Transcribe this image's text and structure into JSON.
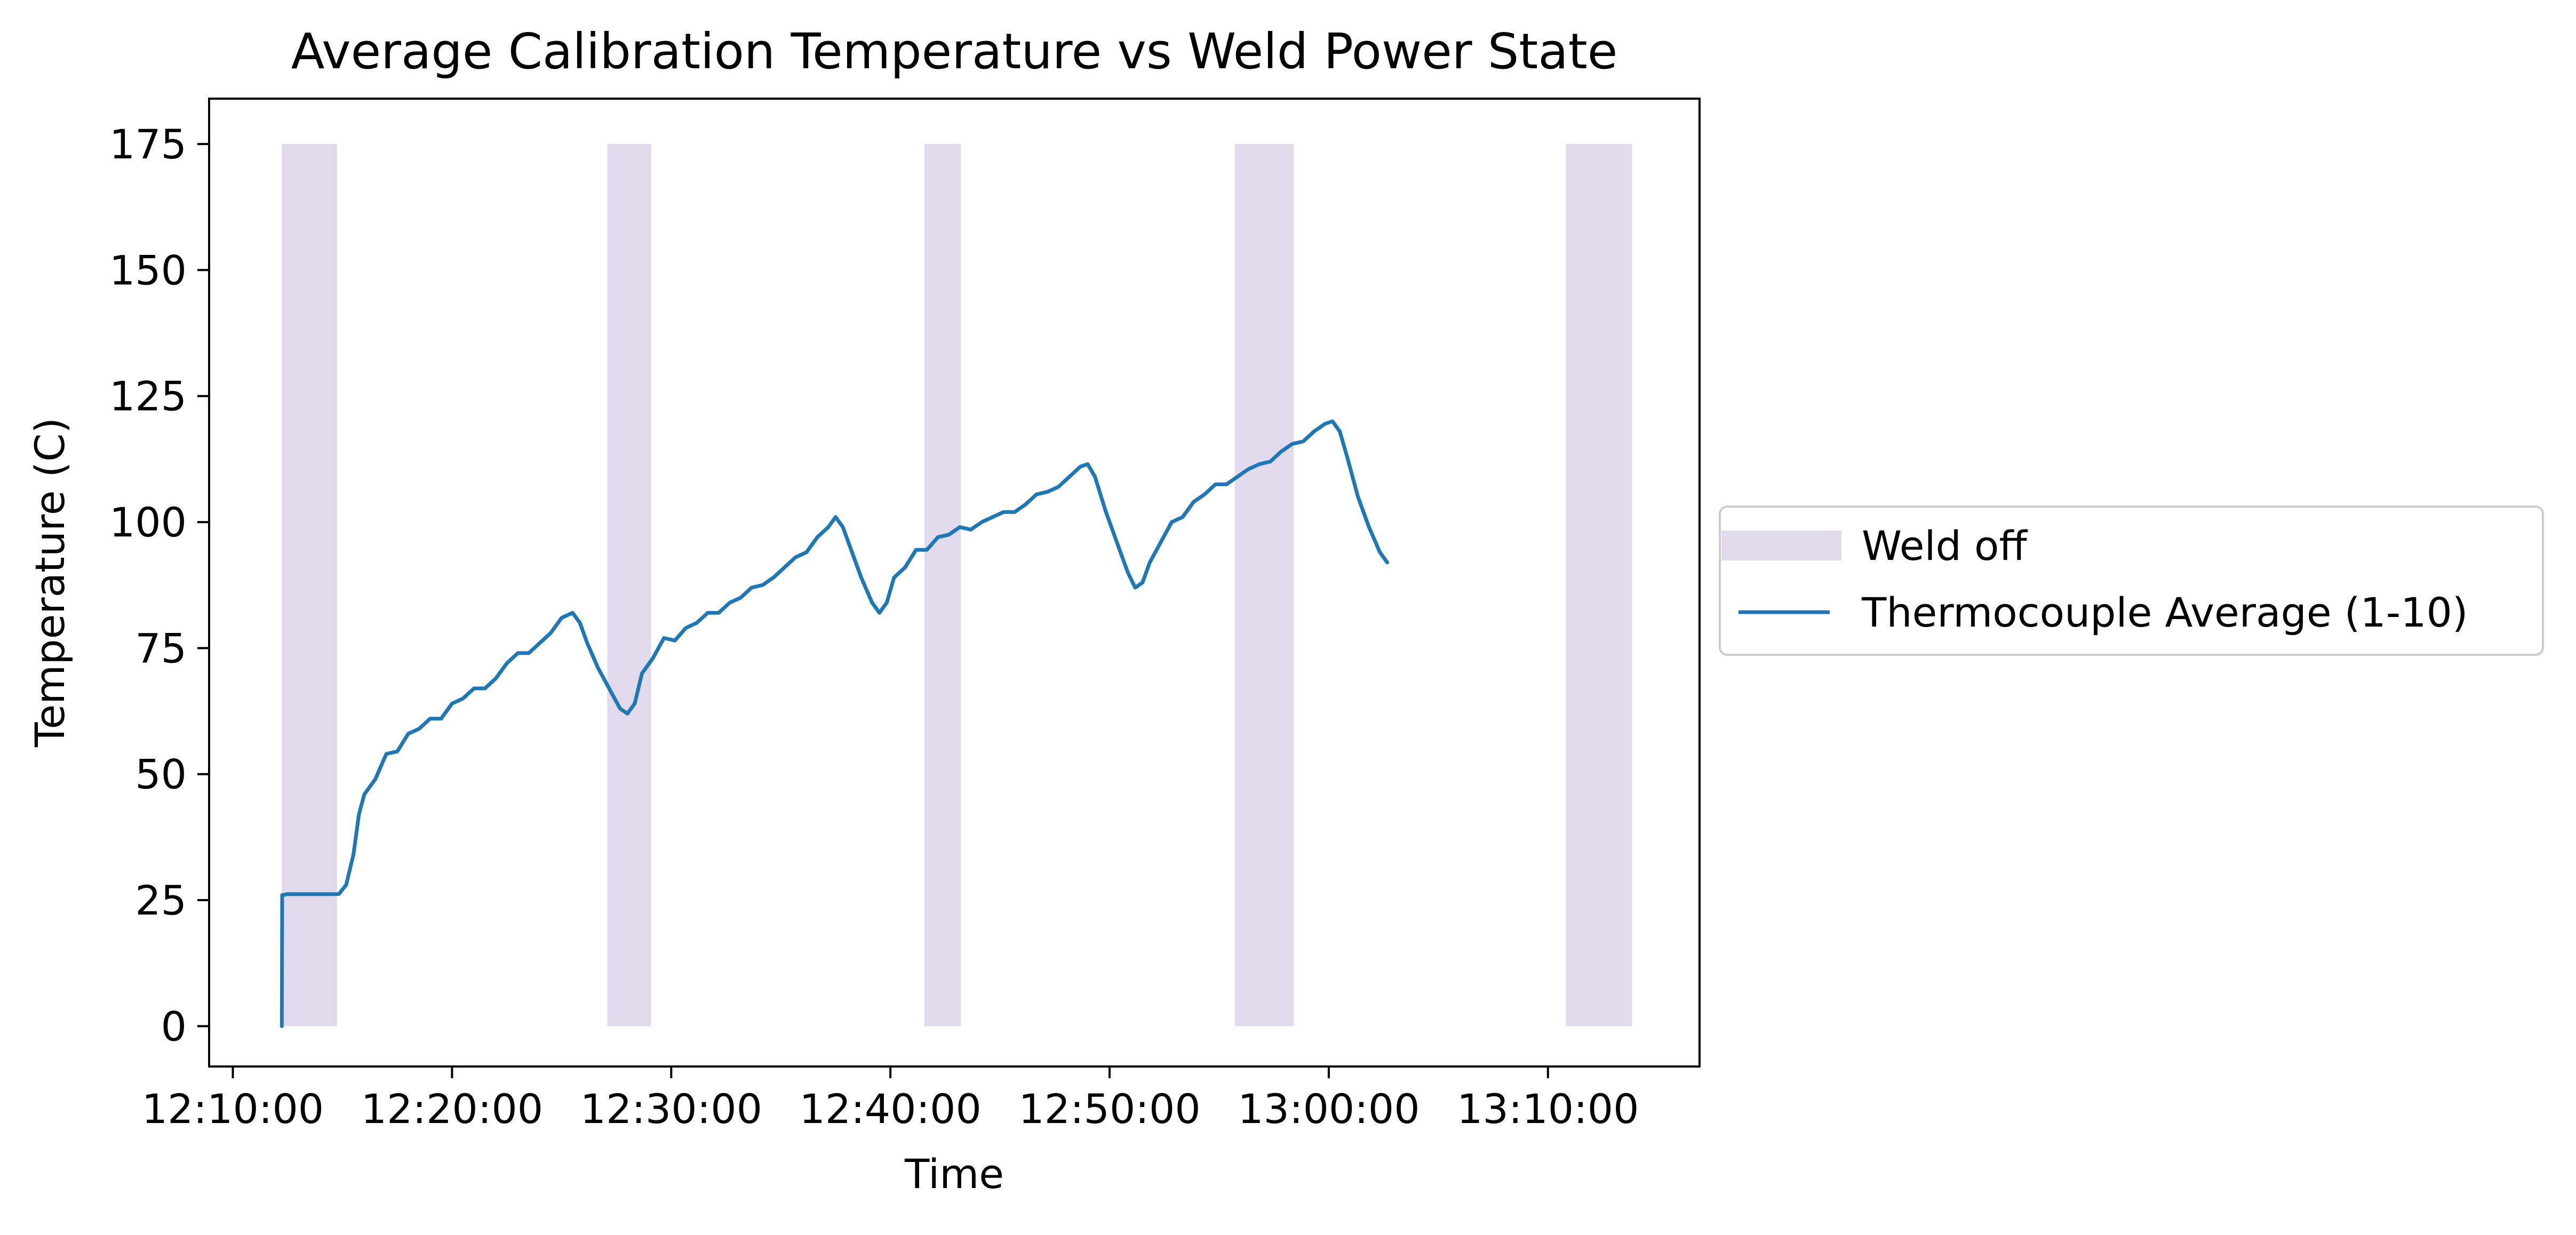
{
  "chart_data": {
    "type": "line",
    "title": "Average Calibration Temperature vs Weld Power State",
    "xlabel": "Time",
    "ylabel": "Temperature (C)",
    "x_axis": {
      "ticks": [
        "12:10:00",
        "12:20:00",
        "12:30:00",
        "12:40:00",
        "12:50:00",
        "13:00:00",
        "13:10:00"
      ],
      "range": [
        "12:08:55",
        "13:16:55"
      ]
    },
    "y_axis": {
      "ticks": [
        0,
        25,
        50,
        75,
        100,
        125,
        150,
        175
      ],
      "range": [
        -8,
        184
      ]
    },
    "grid": false,
    "legend": {
      "position": "outside right, center",
      "entries": [
        "Weld off",
        "Thermocouple Average (1-10)"
      ]
    },
    "shaded_regions": {
      "name": "Weld off",
      "color": "#e1d9ec",
      "y_range": [
        0,
        175
      ],
      "intervals": [
        [
          "12:12:14",
          "12:14:45"
        ],
        [
          "12:27:05",
          "12:29:05"
        ],
        [
          "12:41:33",
          "12:43:13"
        ],
        [
          "12:55:43",
          "12:58:24"
        ],
        [
          "13:10:49",
          "13:13:50"
        ]
      ]
    },
    "series": [
      {
        "name": "Thermocouple Average (1-10)",
        "color": "#1f77b4",
        "points": [
          [
            "12:12:14",
            0
          ],
          [
            "12:12:15",
            26
          ],
          [
            "12:12:30",
            26.2
          ],
          [
            "12:14:50",
            26.2
          ],
          [
            "12:15:10",
            28
          ],
          [
            "12:15:30",
            34
          ],
          [
            "12:15:45",
            42
          ],
          [
            "12:16:00",
            46
          ],
          [
            "12:16:30",
            49
          ],
          [
            "12:17:00",
            54
          ],
          [
            "12:17:30",
            54.5
          ],
          [
            "12:18:00",
            58
          ],
          [
            "12:18:30",
            59
          ],
          [
            "12:19:00",
            61
          ],
          [
            "12:19:30",
            61
          ],
          [
            "12:20:00",
            64
          ],
          [
            "12:20:30",
            65
          ],
          [
            "12:21:00",
            67
          ],
          [
            "12:21:30",
            67
          ],
          [
            "12:22:00",
            69
          ],
          [
            "12:22:30",
            72
          ],
          [
            "12:23:00",
            74
          ],
          [
            "12:23:30",
            74
          ],
          [
            "12:24:00",
            76
          ],
          [
            "12:24:30",
            78
          ],
          [
            "12:25:00",
            81
          ],
          [
            "12:25:30",
            82
          ],
          [
            "12:25:50",
            80
          ],
          [
            "12:26:10",
            76
          ],
          [
            "12:26:40",
            71
          ],
          [
            "12:27:10",
            67
          ],
          [
            "12:27:40",
            63
          ],
          [
            "12:28:00",
            62
          ],
          [
            "12:28:20",
            64
          ],
          [
            "12:28:40",
            70
          ],
          [
            "12:29:10",
            73
          ],
          [
            "12:29:40",
            77
          ],
          [
            "12:30:10",
            76.5
          ],
          [
            "12:30:40",
            79
          ],
          [
            "12:31:10",
            80
          ],
          [
            "12:31:40",
            82
          ],
          [
            "12:32:10",
            82
          ],
          [
            "12:32:40",
            84
          ],
          [
            "12:33:10",
            85
          ],
          [
            "12:33:40",
            87
          ],
          [
            "12:34:10",
            87.5
          ],
          [
            "12:34:40",
            89
          ],
          [
            "12:35:10",
            91
          ],
          [
            "12:35:40",
            93
          ],
          [
            "12:36:10",
            94
          ],
          [
            "12:36:40",
            97
          ],
          [
            "12:37:10",
            99
          ],
          [
            "12:37:30",
            101
          ],
          [
            "12:37:50",
            99
          ],
          [
            "12:38:10",
            95
          ],
          [
            "12:38:40",
            89
          ],
          [
            "12:39:10",
            84
          ],
          [
            "12:39:30",
            82
          ],
          [
            "12:39:50",
            84
          ],
          [
            "12:40:10",
            89
          ],
          [
            "12:40:40",
            91
          ],
          [
            "12:41:10",
            94.5
          ],
          [
            "12:41:40",
            94.5
          ],
          [
            "12:42:10",
            97
          ],
          [
            "12:42:40",
            97.5
          ],
          [
            "12:43:10",
            99
          ],
          [
            "12:43:40",
            98.5
          ],
          [
            "12:44:10",
            100
          ],
          [
            "12:44:40",
            101
          ],
          [
            "12:45:10",
            102
          ],
          [
            "12:45:40",
            102
          ],
          [
            "12:46:10",
            103.5
          ],
          [
            "12:46:40",
            105.5
          ],
          [
            "12:47:10",
            106
          ],
          [
            "12:47:40",
            107
          ],
          [
            "12:48:10",
            109
          ],
          [
            "12:48:40",
            111
          ],
          [
            "12:49:00",
            111.5
          ],
          [
            "12:49:20",
            109
          ],
          [
            "12:49:50",
            102
          ],
          [
            "12:50:20",
            96
          ],
          [
            "12:50:50",
            90
          ],
          [
            "12:51:10",
            87
          ],
          [
            "12:51:30",
            88
          ],
          [
            "12:51:50",
            92
          ],
          [
            "12:52:20",
            96
          ],
          [
            "12:52:50",
            100
          ],
          [
            "12:53:20",
            101
          ],
          [
            "12:53:50",
            104
          ],
          [
            "12:54:20",
            105.5
          ],
          [
            "12:54:50",
            107.5
          ],
          [
            "12:55:20",
            107.5
          ],
          [
            "12:55:50",
            109
          ],
          [
            "12:56:20",
            110.5
          ],
          [
            "12:56:50",
            111.5
          ],
          [
            "12:57:20",
            112
          ],
          [
            "12:57:50",
            114
          ],
          [
            "12:58:20",
            115.5
          ],
          [
            "12:58:50",
            116
          ],
          [
            "12:59:20",
            118
          ],
          [
            "12:59:50",
            119.5
          ],
          [
            "13:00:10",
            120
          ],
          [
            "13:00:30",
            118
          ],
          [
            "13:00:50",
            113
          ],
          [
            "13:01:20",
            105
          ],
          [
            "13:01:50",
            99
          ],
          [
            "13:02:20",
            94
          ],
          [
            "13:02:40",
            92
          ]
        ]
      }
    ]
  }
}
